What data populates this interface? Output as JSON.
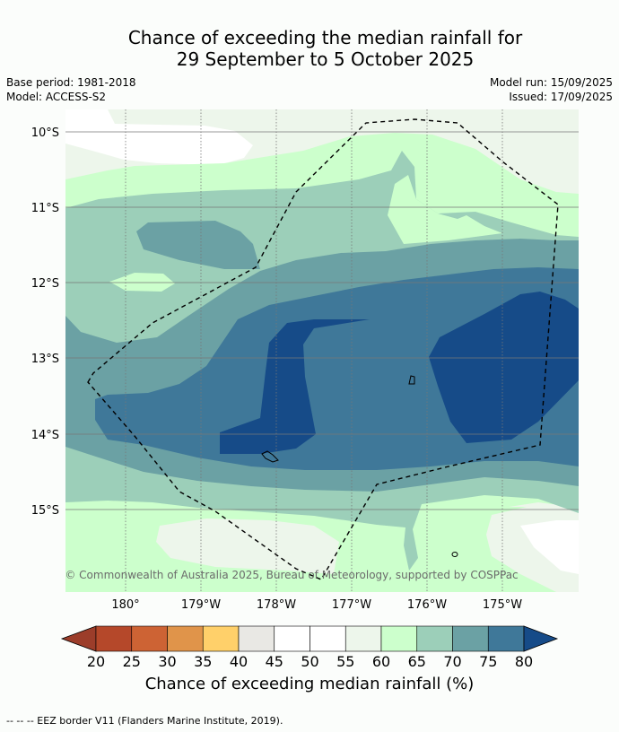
{
  "title_line1": "Chance of exceeding the median rainfall for",
  "title_line2": "29 September to 5 October 2025",
  "meta": {
    "base_period": "Base period: 1981-2018",
    "model": "Model: ACCESS-S2",
    "model_run": "Model run: 15/09/2025",
    "issued": "Issued: 17/09/2025"
  },
  "latitudes": [
    "10°S",
    "11°S",
    "12°S",
    "13°S",
    "14°S",
    "15°S"
  ],
  "longitudes": [
    "180°",
    "179°W",
    "178°W",
    "177°W",
    "176°W",
    "175°W"
  ],
  "copyright": "© Commonwealth of Australia 2025, Bureau of Meteorology, supported by COSPPac",
  "colorbar": {
    "ticks": [
      "20",
      "25",
      "30",
      "35",
      "40",
      "45",
      "50",
      "55",
      "60",
      "65",
      "70",
      "75",
      "80"
    ],
    "colors": [
      "#b5482a",
      "#cd6334",
      "#e0944a",
      "#ffd06a",
      "#e9e8e4",
      "#ffffff",
      "#ffffff",
      "#edf6eb",
      "#ccffcc",
      "#9ccfb9",
      "#6ba1a4",
      "#3f7899"
    ],
    "under_color": "#9c3d2a",
    "over_color": "#164b88",
    "label": "Chance of exceeding median rainfall (%)"
  },
  "legend": "--  --  -- EEZ border V11 (Flanders Marine Institute, 2019)."
}
